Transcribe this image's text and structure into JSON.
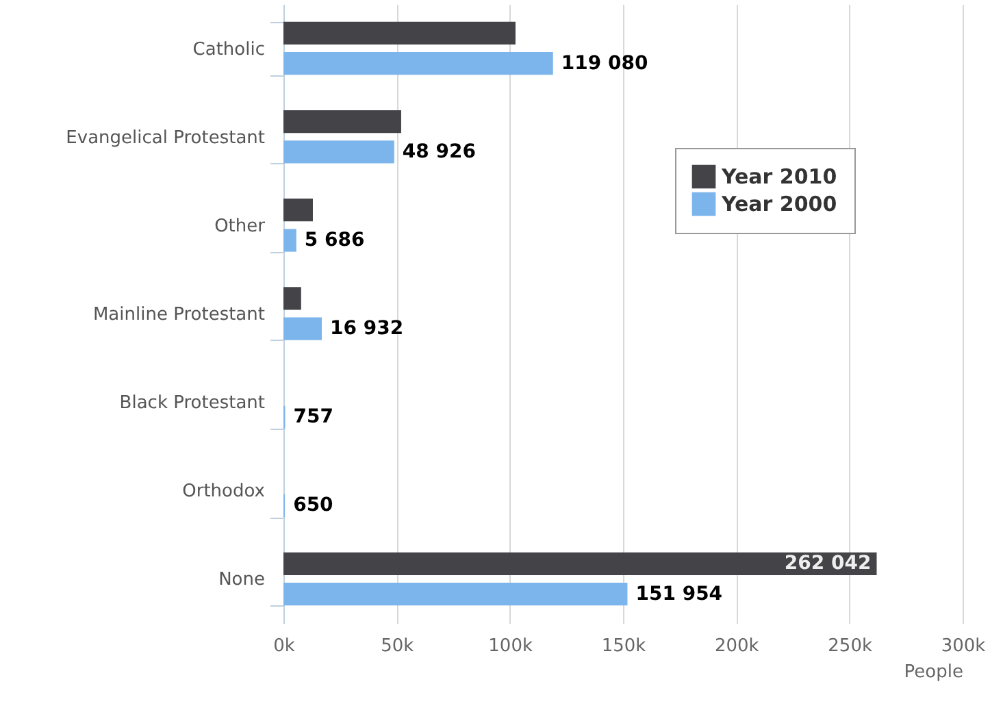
{
  "chart_data": {
    "type": "bar",
    "orientation": "horizontal",
    "categories": [
      "Catholic",
      "Evangelical Protestant",
      "Other",
      "Mainline Protestant",
      "Black Protestant",
      "Orthodox",
      "None"
    ],
    "series": [
      {
        "name": "Year 2010",
        "color": "#434348",
        "values": [
          102500,
          52000,
          13000,
          7800,
          null,
          null,
          262042
        ],
        "value_labels": [
          null,
          null,
          null,
          null,
          null,
          null,
          "262 042"
        ]
      },
      {
        "name": "Year 2000",
        "color": "#7cb5ec",
        "values": [
          119080,
          48926,
          5686,
          16932,
          757,
          650,
          151954
        ],
        "value_labels": [
          "119 080",
          "48 926",
          "5 686",
          "16 932",
          "757",
          "650",
          "151 954"
        ]
      }
    ],
    "xlabel": "People",
    "xlim": [
      0,
      300000
    ],
    "xticks": [
      {
        "value": 0,
        "label": "0k"
      },
      {
        "value": 50000,
        "label": "50k"
      },
      {
        "value": 100000,
        "label": "100k"
      },
      {
        "value": 150000,
        "label": "150k"
      },
      {
        "value": 200000,
        "label": "200k"
      },
      {
        "value": 250000,
        "label": "250k"
      },
      {
        "value": 300000,
        "label": "300k"
      }
    ],
    "grid": "x",
    "legend": "top right"
  }
}
